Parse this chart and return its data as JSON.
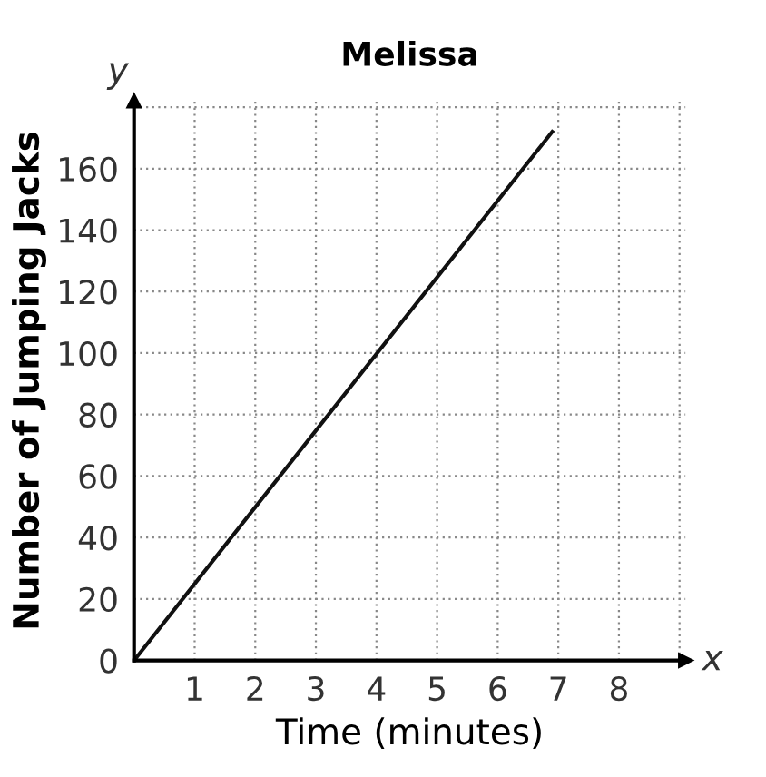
{
  "chart_data": {
    "type": "line",
    "title": "Melissa",
    "xlabel": "Time (minutes)",
    "ylabel": "Number of Jumping Jacks",
    "x": [
      0,
      6.9
    ],
    "series": [
      {
        "color": "#111111",
        "values": [
          0,
          172
        ]
      }
    ],
    "xlim": [
      0,
      9.1
    ],
    "ylim": [
      0,
      182
    ],
    "xticks": [
      {
        "value": 0,
        "label": null
      },
      1,
      2,
      3,
      4,
      5,
      6,
      7,
      8,
      {
        "value": 9,
        "label": null
      }
    ],
    "yticks": [
      0,
      20,
      40,
      60,
      80,
      100,
      120,
      140,
      160,
      {
        "value": 180,
        "label": null
      }
    ],
    "grid": true,
    "line_style": "solid",
    "marker": "none",
    "annotations": [
      "x",
      "y"
    ]
  }
}
